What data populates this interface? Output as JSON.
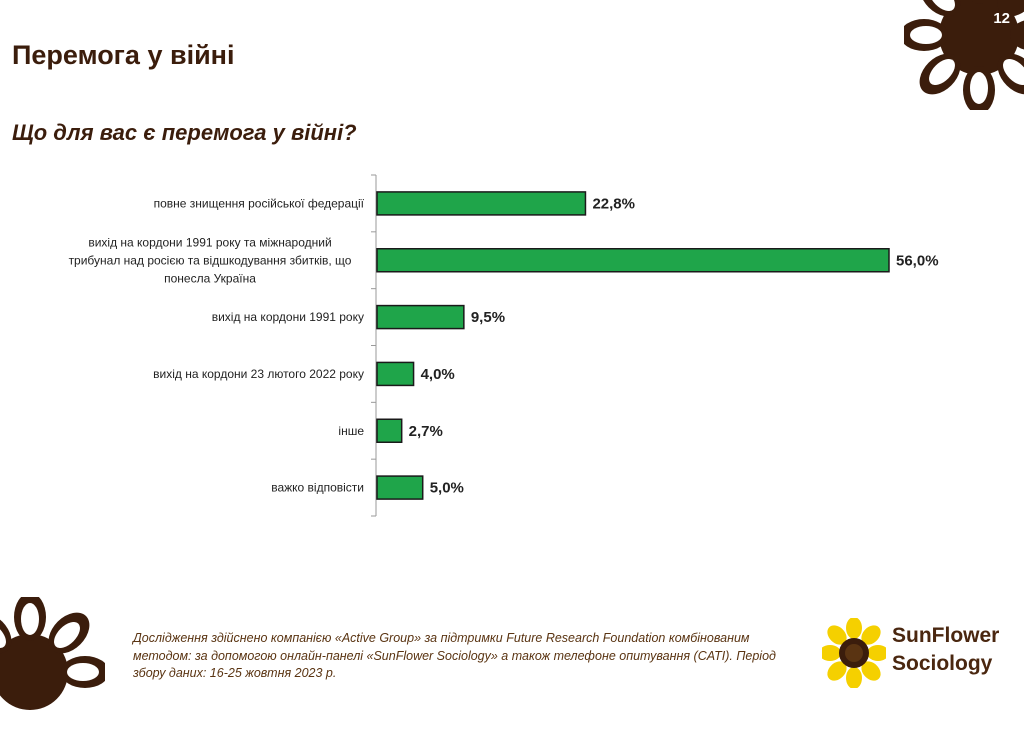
{
  "page": {
    "number": "12",
    "title": "Перемога у війні",
    "question": "Що для вас є перемога у війні?"
  },
  "chart_data": {
    "type": "bar",
    "orientation": "horizontal",
    "categories": [
      [
        "повне знищення російської федерації"
      ],
      [
        "вихід на кордони 1991 року  та міжнародний",
        "трибунал над росією та відшкодування збитків, що",
        "понесла Україна"
      ],
      [
        "вихід на кордони 1991 року"
      ],
      [
        "вихід на кордони 23 лютого 2022 року"
      ],
      [
        "інше"
      ],
      [
        "важко відповісти"
      ]
    ],
    "values": [
      22.8,
      56.0,
      9.5,
      4.0,
      2.7,
      5.0
    ],
    "value_labels": [
      "22,8%",
      "56,0%",
      "9,5%",
      "4,0%",
      "2,7%",
      "5,0%"
    ],
    "xlim": [
      0,
      56
    ],
    "grid": false,
    "bar_color": "#1fa54a",
    "bar_border": "#1a1a1a"
  },
  "footer": {
    "note": "Дослідження здійснено компанією «Active Group» за підтримки Future Research Foundation комбінованим методом: за допомогою онлайн-панелі «SunFlower Sociology» а також телефоне опитування (CATI). Період збору даних: 16-25 жовтня 2023 р."
  },
  "brand": {
    "line1": "SunFlower",
    "line2": "Sociology"
  },
  "colors": {
    "brown": "#3b1d0c",
    "yellow": "#f5d000",
    "green": "#1fa54a"
  }
}
